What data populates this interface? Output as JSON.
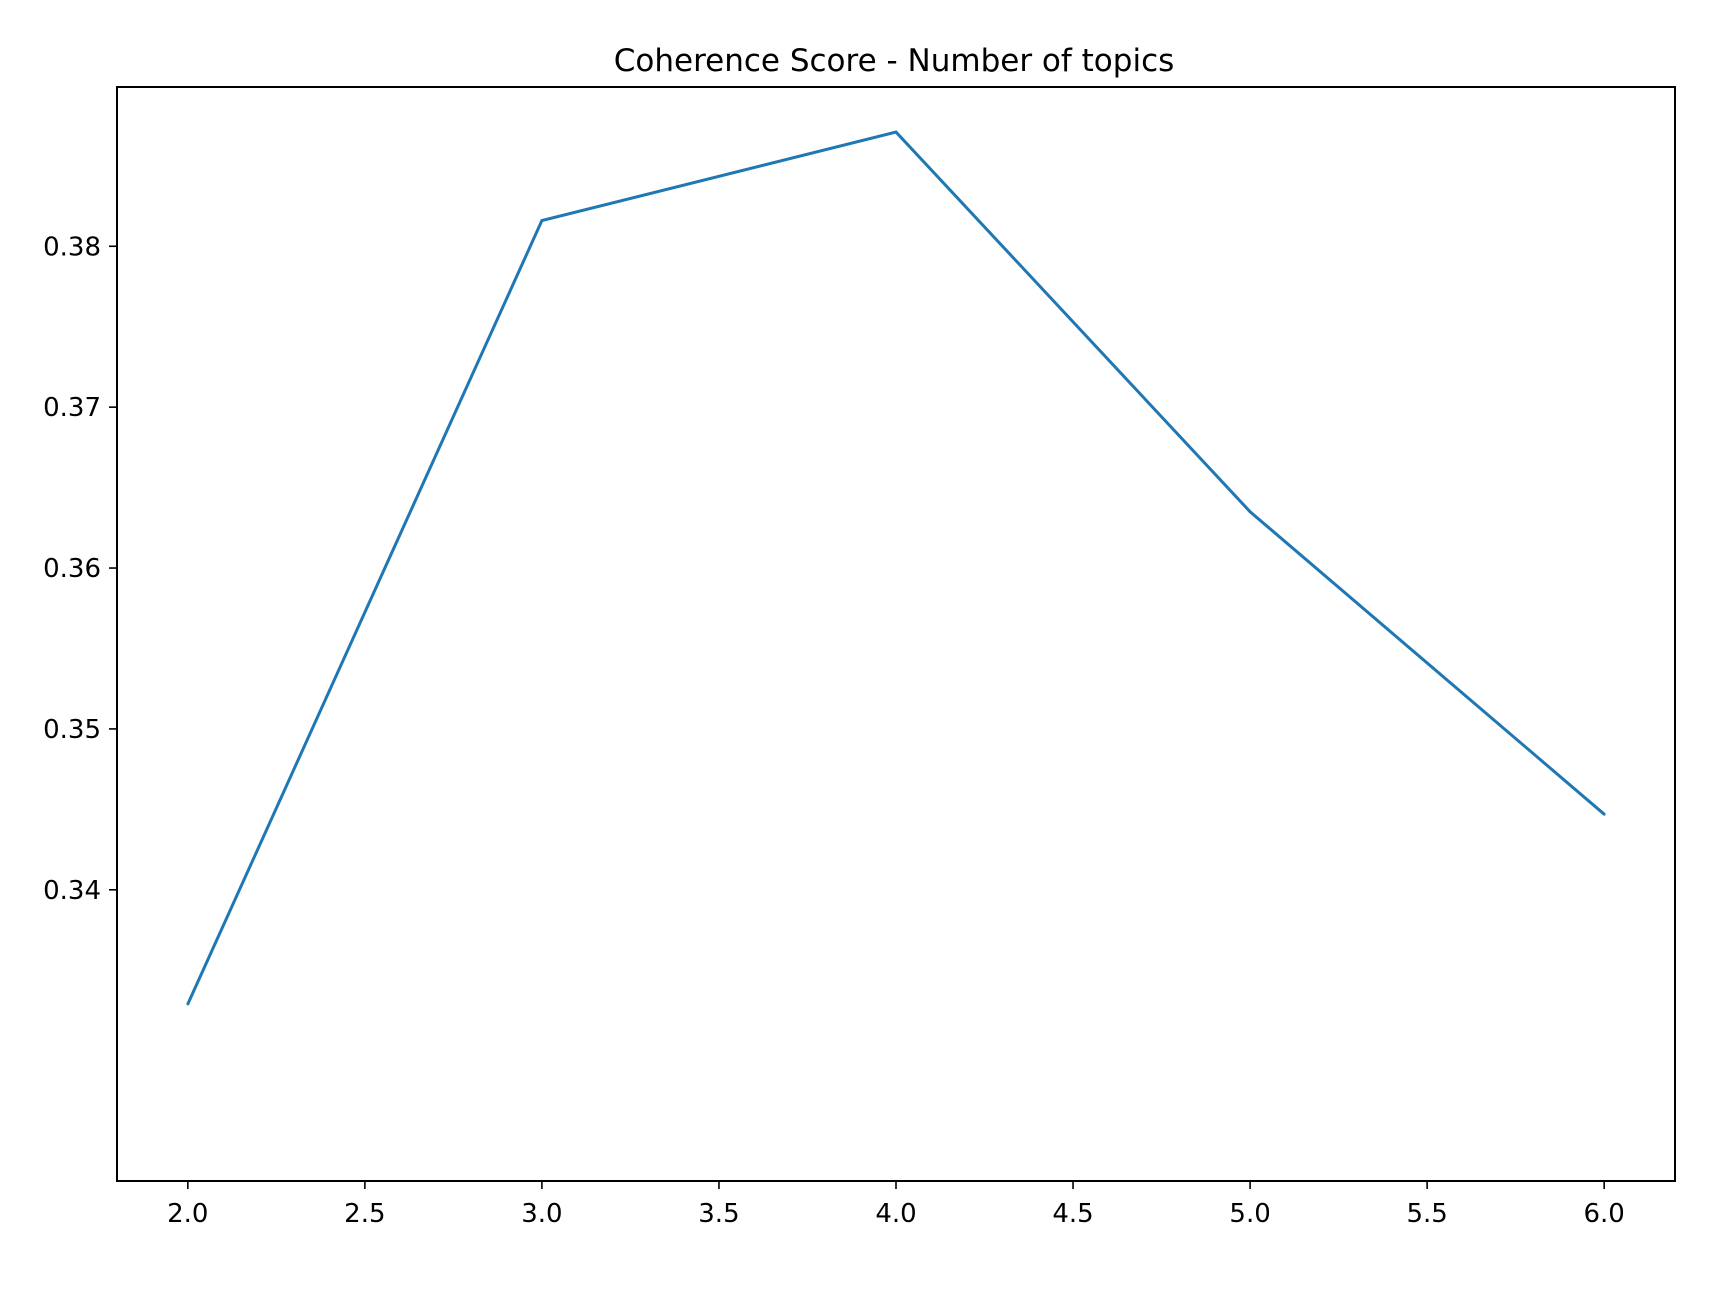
{
  "chart_data": {
    "type": "line",
    "title": "Coherence Score - Number of topics",
    "xlabel": "",
    "ylabel": "",
    "x": [
      2,
      3,
      4,
      5,
      6
    ],
    "series": [
      {
        "values": [
          0.3329,
          0.3816,
          0.3871,
          0.3635,
          0.3447
        ],
        "color": "#1f77b4"
      }
    ],
    "xlim": [
      1.8,
      6.2
    ],
    "ylim": [
      0.3219,
      0.3899
    ],
    "x_ticks": [
      2.0,
      2.5,
      3.0,
      3.5,
      4.0,
      4.5,
      5.0,
      5.5,
      6.0
    ],
    "x_tick_labels": [
      "2.0",
      "2.5",
      "3.0",
      "3.5",
      "4.0",
      "4.5",
      "5.0",
      "5.5",
      "6.0"
    ],
    "y_ticks": [
      0.34,
      0.35,
      0.36,
      0.37,
      0.38
    ],
    "y_tick_labels": [
      "0.34",
      "0.35",
      "0.36",
      "0.37",
      "0.38"
    ],
    "grid": false,
    "legend": "none"
  }
}
